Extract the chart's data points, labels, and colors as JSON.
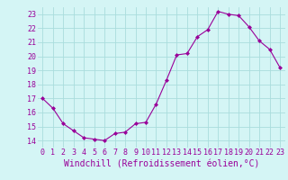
{
  "x": [
    0,
    1,
    2,
    3,
    4,
    5,
    6,
    7,
    8,
    9,
    10,
    11,
    12,
    13,
    14,
    15,
    16,
    17,
    18,
    19,
    20,
    21,
    22,
    23
  ],
  "y": [
    17,
    16.3,
    15.2,
    14.7,
    14.2,
    14.1,
    14.0,
    14.5,
    14.6,
    15.2,
    15.3,
    16.6,
    18.3,
    20.1,
    20.2,
    21.4,
    21.9,
    23.2,
    23.0,
    22.9,
    22.1,
    21.1,
    20.5,
    19.2
  ],
  "xlabel": "Windchill (Refroidissement éolien,°C)",
  "xlim": [
    -0.5,
    23.5
  ],
  "ylim": [
    13.5,
    23.5
  ],
  "yticks": [
    14,
    15,
    16,
    17,
    18,
    19,
    20,
    21,
    22,
    23
  ],
  "xticks": [
    0,
    1,
    2,
    3,
    4,
    5,
    6,
    7,
    8,
    9,
    10,
    11,
    12,
    13,
    14,
    15,
    16,
    17,
    18,
    19,
    20,
    21,
    22,
    23
  ],
  "line_color": "#990099",
  "marker": "D",
  "marker_size": 2.0,
  "bg_color": "#d4f5f5",
  "grid_color": "#aadddd",
  "xlabel_fontsize": 7,
  "tick_fontsize": 6
}
